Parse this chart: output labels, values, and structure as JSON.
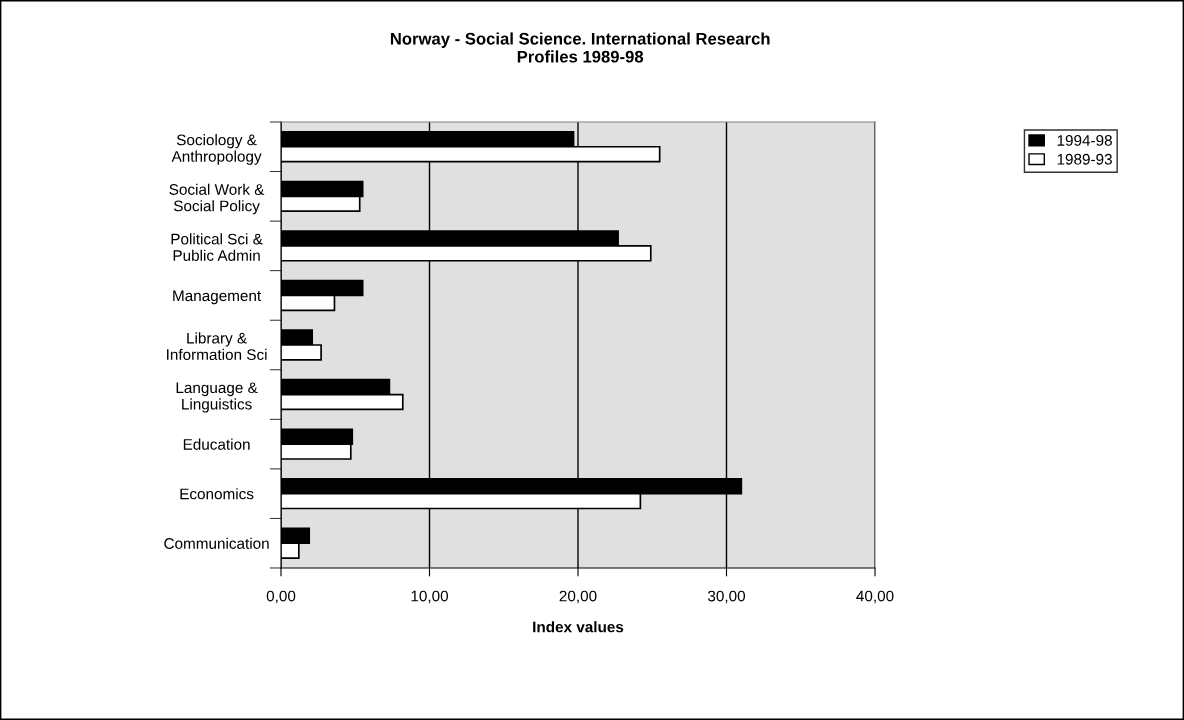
{
  "chart_data": {
    "type": "bar",
    "orientation": "horizontal",
    "title": "Norway - Social Science. International Research\nProfiles 1989-98",
    "xlabel": "Index values",
    "categories": [
      "Sociology &\nAnthropology",
      "Social Work &\nSocial Policy",
      "Political Sci &\nPublic Admin",
      "Management",
      "Library &\nInformation Sci",
      "Language &\nLinguistics",
      "Education",
      "Economics",
      "Communication"
    ],
    "series": [
      {
        "name": "1994-98",
        "color": "#000000",
        "values": [
          19.7,
          5.5,
          22.7,
          5.5,
          2.1,
          7.3,
          4.8,
          31.0,
          1.9
        ]
      },
      {
        "name": "1989-93",
        "color": "#ffffff",
        "values": [
          25.5,
          5.3,
          24.9,
          3.6,
          2.7,
          8.2,
          4.7,
          24.2,
          1.2
        ]
      }
    ],
    "xlim": [
      0,
      40
    ],
    "xticks": [
      {
        "value": 0,
        "label": "0,00"
      },
      {
        "value": 10,
        "label": "10,00"
      },
      {
        "value": 20,
        "label": "20,00"
      },
      {
        "value": 30,
        "label": "30,00"
      },
      {
        "value": 40,
        "label": "40,00"
      }
    ],
    "grid": "x",
    "legend": "top right"
  }
}
